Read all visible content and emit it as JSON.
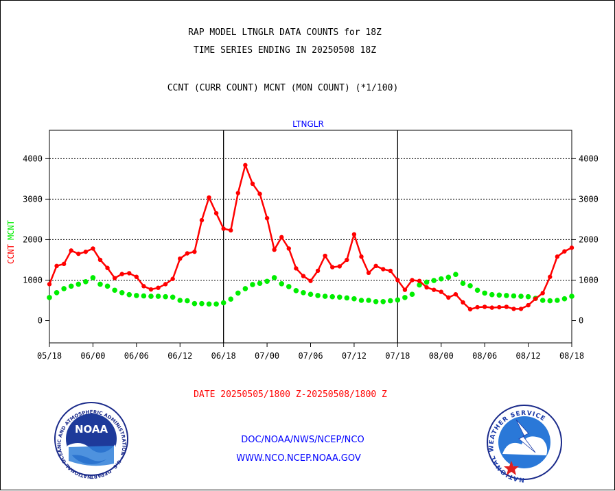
{
  "header": {
    "title_line1": "RAP MODEL LTNGLR DATA COUNTS for 18Z",
    "title_line2": "TIME SERIES ENDING IN 20250508 18Z",
    "subtitle": "CCNT (CURR COUNT) MCNT (MON COUNT) (*1/100)",
    "plot_label": "LTNGLR"
  },
  "footer": {
    "date_range": "DATE 20250505/1800 Z-20250508/1800 Z",
    "org_path": "DOC/NOAA/NWS/NCEP/NCO",
    "website": "WWW.NCO.NCEP.NOAA.GOV"
  },
  "logos": {
    "noaa_text": "NOAA",
    "noaa_ring_text": "NATIONAL OCEANIC AND ATMOSPHERIC ADMINISTRATION · U.S. DEPARTMENT OF COMMERCE",
    "nws_ring_text": "NATIONAL WEATHER SERVICE"
  },
  "colors": {
    "ccnt": "#ff0000",
    "mcnt": "#00ee00",
    "title": "#000000",
    "label_blue": "#0000ff",
    "date_red": "#ff0000"
  },
  "chart_data": {
    "type": "line",
    "title": "RAP MODEL LTNGLR DATA COUNTS for 18Z",
    "ylabel_series": [
      "CCNT",
      "MCNT"
    ],
    "ylim": [
      -550,
      4700
    ],
    "yticks": [
      0,
      1000,
      2000,
      3000,
      4000
    ],
    "xlim": [
      0,
      72
    ],
    "xticks": [
      0,
      6,
      12,
      18,
      24,
      30,
      36,
      42,
      48,
      54,
      60,
      66,
      72
    ],
    "xtick_labels": [
      "05/18",
      "06/00",
      "06/06",
      "06/12",
      "06/18",
      "07/00",
      "07/06",
      "07/12",
      "07/18",
      "08/00",
      "08/06",
      "08/12",
      "08/18"
    ],
    "day_boundaries": [
      24,
      48
    ],
    "grid": true,
    "series": [
      {
        "name": "CCNT",
        "color": "#ff0000",
        "values": [
          900,
          1350,
          1400,
          1730,
          1650,
          1700,
          1780,
          1500,
          1300,
          1050,
          1150,
          1170,
          1080,
          850,
          770,
          810,
          900,
          1030,
          1530,
          1660,
          1700,
          2480,
          3040,
          2650,
          2270,
          2230,
          3150,
          3840,
          3380,
          3130,
          2530,
          1750,
          2060,
          1780,
          1290,
          1100,
          980,
          1230,
          1600,
          1320,
          1340,
          1500,
          2130,
          1580,
          1180,
          1350,
          1270,
          1230,
          1000,
          760,
          1000,
          980,
          820,
          760,
          710,
          570,
          650,
          450,
          280,
          330,
          340,
          320,
          330,
          340,
          290,
          290,
          380,
          540,
          680,
          1080,
          1580,
          1710,
          1800
        ]
      },
      {
        "name": "MCNT",
        "color": "#00ee00",
        "values": [
          570,
          690,
          790,
          850,
          900,
          960,
          1060,
          900,
          850,
          750,
          690,
          640,
          620,
          610,
          600,
          600,
          590,
          580,
          500,
          490,
          420,
          420,
          410,
          410,
          440,
          530,
          680,
          790,
          890,
          920,
          970,
          1060,
          910,
          840,
          740,
          690,
          650,
          620,
          600,
          590,
          580,
          560,
          540,
          500,
          500,
          470,
          470,
          490,
          510,
          570,
          650,
          880,
          950,
          990,
          1030,
          1070,
          1140,
          920,
          860,
          750,
          680,
          640,
          630,
          620,
          610,
          600,
          590,
          550,
          500,
          490,
          500,
          540,
          600
        ]
      }
    ]
  }
}
